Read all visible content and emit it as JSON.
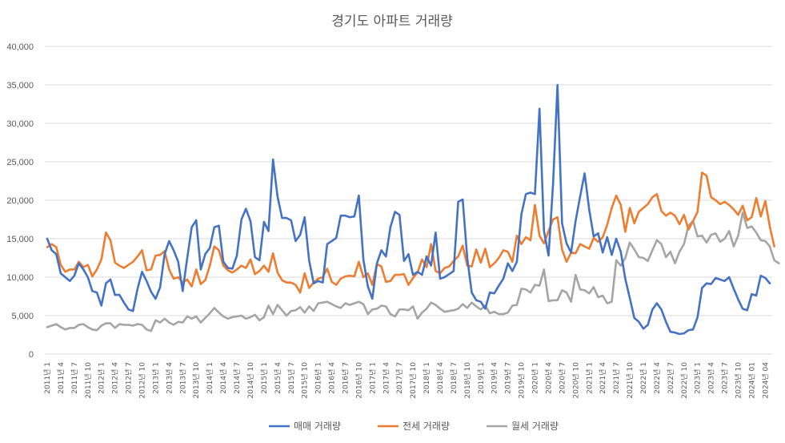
{
  "chart_data": {
    "type": "line",
    "title": "경기도 아파트 거래량",
    "xlabel": "",
    "ylabel": "",
    "ylim": [
      0,
      40000
    ],
    "yticks": [
      0,
      5000,
      10000,
      15000,
      20000,
      25000,
      30000,
      35000,
      40000
    ],
    "ytick_labels": [
      "0",
      "5,000",
      "10,000",
      "15,000",
      "20,000",
      "25,000",
      "30,000",
      "35,000",
      "40,000"
    ],
    "grid": "horizontal",
    "legend_position": "bottom",
    "x_tick_labels": [
      "2011년 1",
      "2011년 4",
      "2011년 7",
      "2011년 10",
      "2012년 1",
      "2012년 4",
      "2012년 7",
      "2012년 10",
      "2013년 1",
      "2013년 4",
      "2013년 7",
      "2013년 10",
      "2014년 1",
      "2014년 4",
      "2014년 7",
      "2014년 10",
      "2015년 1",
      "2015년 4",
      "2015년 7",
      "2015년 10",
      "2016년 1",
      "2016년 4",
      "2016년 7",
      "2016년 10",
      "2017년 1",
      "2017년 4",
      "2017년 7",
      "2017년 10",
      "2018년 1",
      "2018년 4",
      "2018년 7",
      "2018년 10",
      "2019년 1",
      "2019년 4",
      "2019년 7",
      "2019년 10",
      "2020년 1",
      "2020년 4",
      "2020년 7",
      "2020년 10",
      "2021년 1",
      "2021년 4",
      "2021년 7",
      "2021년 10",
      "2022년 1",
      "2022년 4",
      "2022년 7",
      "2022년 10",
      "2023년 1",
      "2023년 4",
      "2023년 7",
      "2023년 10",
      "2024년 01",
      "2024년 04"
    ],
    "series": [
      {
        "name": "매매 거래량",
        "color": "#4472c4",
        "values": [
          15000,
          13500,
          13000,
          10500,
          10000,
          9500,
          10200,
          11800,
          11000,
          10000,
          8200,
          8000,
          6300,
          9200,
          9700,
          7700,
          7700,
          6700,
          5800,
          5600,
          8500,
          10700,
          9500,
          8100,
          7200,
          8700,
          13000,
          14700,
          13500,
          12000,
          8200,
          12500,
          16500,
          17400,
          11000,
          13000,
          13800,
          16500,
          16700,
          12000,
          11200,
          11100,
          12800,
          17500,
          18900,
          17300,
          12600,
          12200,
          17200,
          16000,
          25300,
          20500,
          17700,
          17700,
          17400,
          14700,
          15500,
          17800,
          12200,
          9200,
          9500,
          9300,
          14300,
          14700,
          15100,
          18000,
          18000,
          17800,
          17900,
          20600,
          12300,
          8800,
          7200,
          11800,
          13500,
          12700,
          16500,
          18500,
          18100,
          12100,
          13000,
          10300,
          10700,
          10300,
          12700,
          11500,
          15800,
          9800,
          10000,
          10400,
          10800,
          19800,
          20100,
          12500,
          8000,
          7000,
          6800,
          5900,
          8000,
          7900,
          8900,
          9800,
          11800,
          10800,
          12000,
          18200,
          20800,
          21000,
          20800,
          31900,
          16000,
          12800,
          22000,
          35000,
          17000,
          14400,
          13200,
          17300,
          20500,
          23500,
          18800,
          15300,
          15700,
          13200,
          15200,
          12900,
          15000,
          13300,
          9800,
          7300,
          4700,
          4200,
          3300,
          3800,
          5800,
          6600,
          5800,
          4200,
          2900,
          2800,
          2600,
          2700,
          3100,
          3200,
          4800,
          8600,
          9200,
          9100,
          9900,
          9700,
          9500,
          10000,
          8500,
          7100,
          5900,
          5700,
          7800,
          7600,
          10200,
          9900,
          9200
        ]
      },
      {
        "name": "전세 거래량",
        "color": "#ed7d31",
        "values": [
          13900,
          14300,
          13900,
          11600,
          10700,
          11000,
          11000,
          12000,
          11300,
          11600,
          10100,
          11000,
          12300,
          15800,
          14800,
          11900,
          11500,
          11200,
          11600,
          12000,
          12700,
          13500,
          10900,
          11000,
          12800,
          12900,
          13400,
          11000,
          9800,
          10000,
          9300,
          9700,
          8800,
          11000,
          9100,
          9600,
          11500,
          14000,
          13500,
          11500,
          10900,
          10600,
          11000,
          11500,
          11200,
          12300,
          10400,
          10800,
          11500,
          10700,
          13100,
          10600,
          9600,
          9300,
          9300,
          9000,
          8000,
          10500,
          8600,
          9300,
          9800,
          10000,
          11100,
          9400,
          9000,
          9800,
          10100,
          10200,
          10100,
          12000,
          10000,
          10500,
          9000,
          11700,
          11400,
          9400,
          9500,
          10300,
          10300,
          10400,
          9000,
          9900,
          10600,
          12300,
          11300,
          14300,
          10800,
          10500,
          11200,
          11400,
          12100,
          12700,
          14100,
          11500,
          11400,
          13600,
          11900,
          13700,
          11300,
          11800,
          12500,
          13500,
          13300,
          12000,
          15400,
          14300,
          15200,
          14800,
          19400,
          15400,
          14400,
          16000,
          17500,
          17800,
          13600,
          12000,
          13200,
          13100,
          14300,
          14000,
          13700,
          15100,
          14600,
          15200,
          16800,
          19000,
          20600,
          19400,
          15900,
          19000,
          17000,
          18500,
          19000,
          19500,
          20400,
          20800,
          18600,
          18000,
          18400,
          18000,
          16900,
          18100,
          16200,
          17300,
          18500,
          23600,
          23200,
          20400,
          20000,
          19500,
          19800,
          19400,
          18800,
          18100,
          19300,
          17400,
          17800,
          20300,
          17900,
          19900,
          16600,
          14000
        ]
      },
      {
        "name": "월세 거래량",
        "color": "#a5a5a5",
        "values": [
          3500,
          3700,
          3900,
          3500,
          3200,
          3400,
          3400,
          3800,
          3900,
          3500,
          3200,
          3100,
          3700,
          4000,
          4000,
          3400,
          3900,
          3800,
          3800,
          3700,
          3900,
          3800,
          3200,
          3000,
          4400,
          4100,
          4600,
          4100,
          3800,
          4200,
          4100,
          4900,
          4600,
          4900,
          4100,
          4700,
          5300,
          6000,
          5400,
          4900,
          4600,
          4800,
          4900,
          5000,
          4600,
          4800,
          5100,
          4400,
          4800,
          6300,
          5200,
          6400,
          5700,
          5000,
          5600,
          5700,
          6100,
          5400,
          6200,
          5600,
          6600,
          6700,
          6800,
          6500,
          6200,
          6000,
          6600,
          6400,
          6600,
          6800,
          6500,
          5200,
          5800,
          5900,
          6300,
          6200,
          5200,
          4900,
          5800,
          5800,
          5700,
          6200,
          4600,
          5400,
          5900,
          6700,
          6400,
          5900,
          5500,
          5600,
          5700,
          5900,
          6500,
          6000,
          6700,
          6200,
          5800,
          6300,
          5300,
          5500,
          5200,
          5200,
          5400,
          6300,
          6400,
          8500,
          8400,
          8000,
          9000,
          8900,
          11000,
          6900,
          7000,
          7000,
          8300,
          8000,
          6800,
          10300,
          8400,
          8300,
          7900,
          8700,
          7400,
          7600,
          6600,
          6800,
          12200,
          11500,
          12500,
          14500,
          13600,
          12600,
          12500,
          12100,
          13500,
          14800,
          14300,
          12600,
          13300,
          11800,
          13300,
          14300,
          16700,
          17300,
          15300,
          15400,
          14500,
          15500,
          15700,
          14600,
          15000,
          16000,
          14000,
          15400,
          18400,
          16400,
          16600,
          15800,
          14800,
          14700,
          14000,
          12200,
          11800
        ]
      }
    ]
  }
}
